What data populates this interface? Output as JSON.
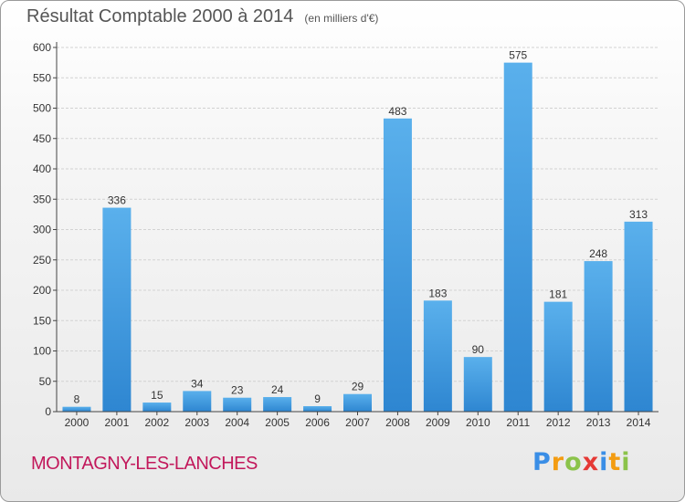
{
  "title": "Résultat Comptable 2000 à 2014",
  "unit": "(en milliers d'€)",
  "commune": "MONTAGNY-LES-LANCHES",
  "logo": [
    "P",
    "r",
    "o",
    "x",
    "i",
    "t",
    "i"
  ],
  "colors": {
    "bar_top": "#5ab0ec",
    "bar_bottom": "#2e86d1",
    "grid": "#d2d2d2",
    "axis": "#444444"
  },
  "chart_data": {
    "type": "bar",
    "title": "Résultat Comptable 2000 à 2014",
    "subtitle": "(en milliers d'€)",
    "xlabel": "",
    "ylabel": "",
    "categories": [
      "2000",
      "2001",
      "2002",
      "2003",
      "2004",
      "2005",
      "2006",
      "2007",
      "2008",
      "2009",
      "2010",
      "2011",
      "2012",
      "2013",
      "2014"
    ],
    "values": [
      8,
      336,
      15,
      34,
      23,
      24,
      9,
      29,
      483,
      183,
      90,
      575,
      181,
      248,
      313
    ],
    "ylim": [
      0,
      600
    ],
    "yticks": [
      0,
      50,
      100,
      150,
      200,
      250,
      300,
      350,
      400,
      450,
      500,
      550,
      600
    ],
    "grid": true
  }
}
